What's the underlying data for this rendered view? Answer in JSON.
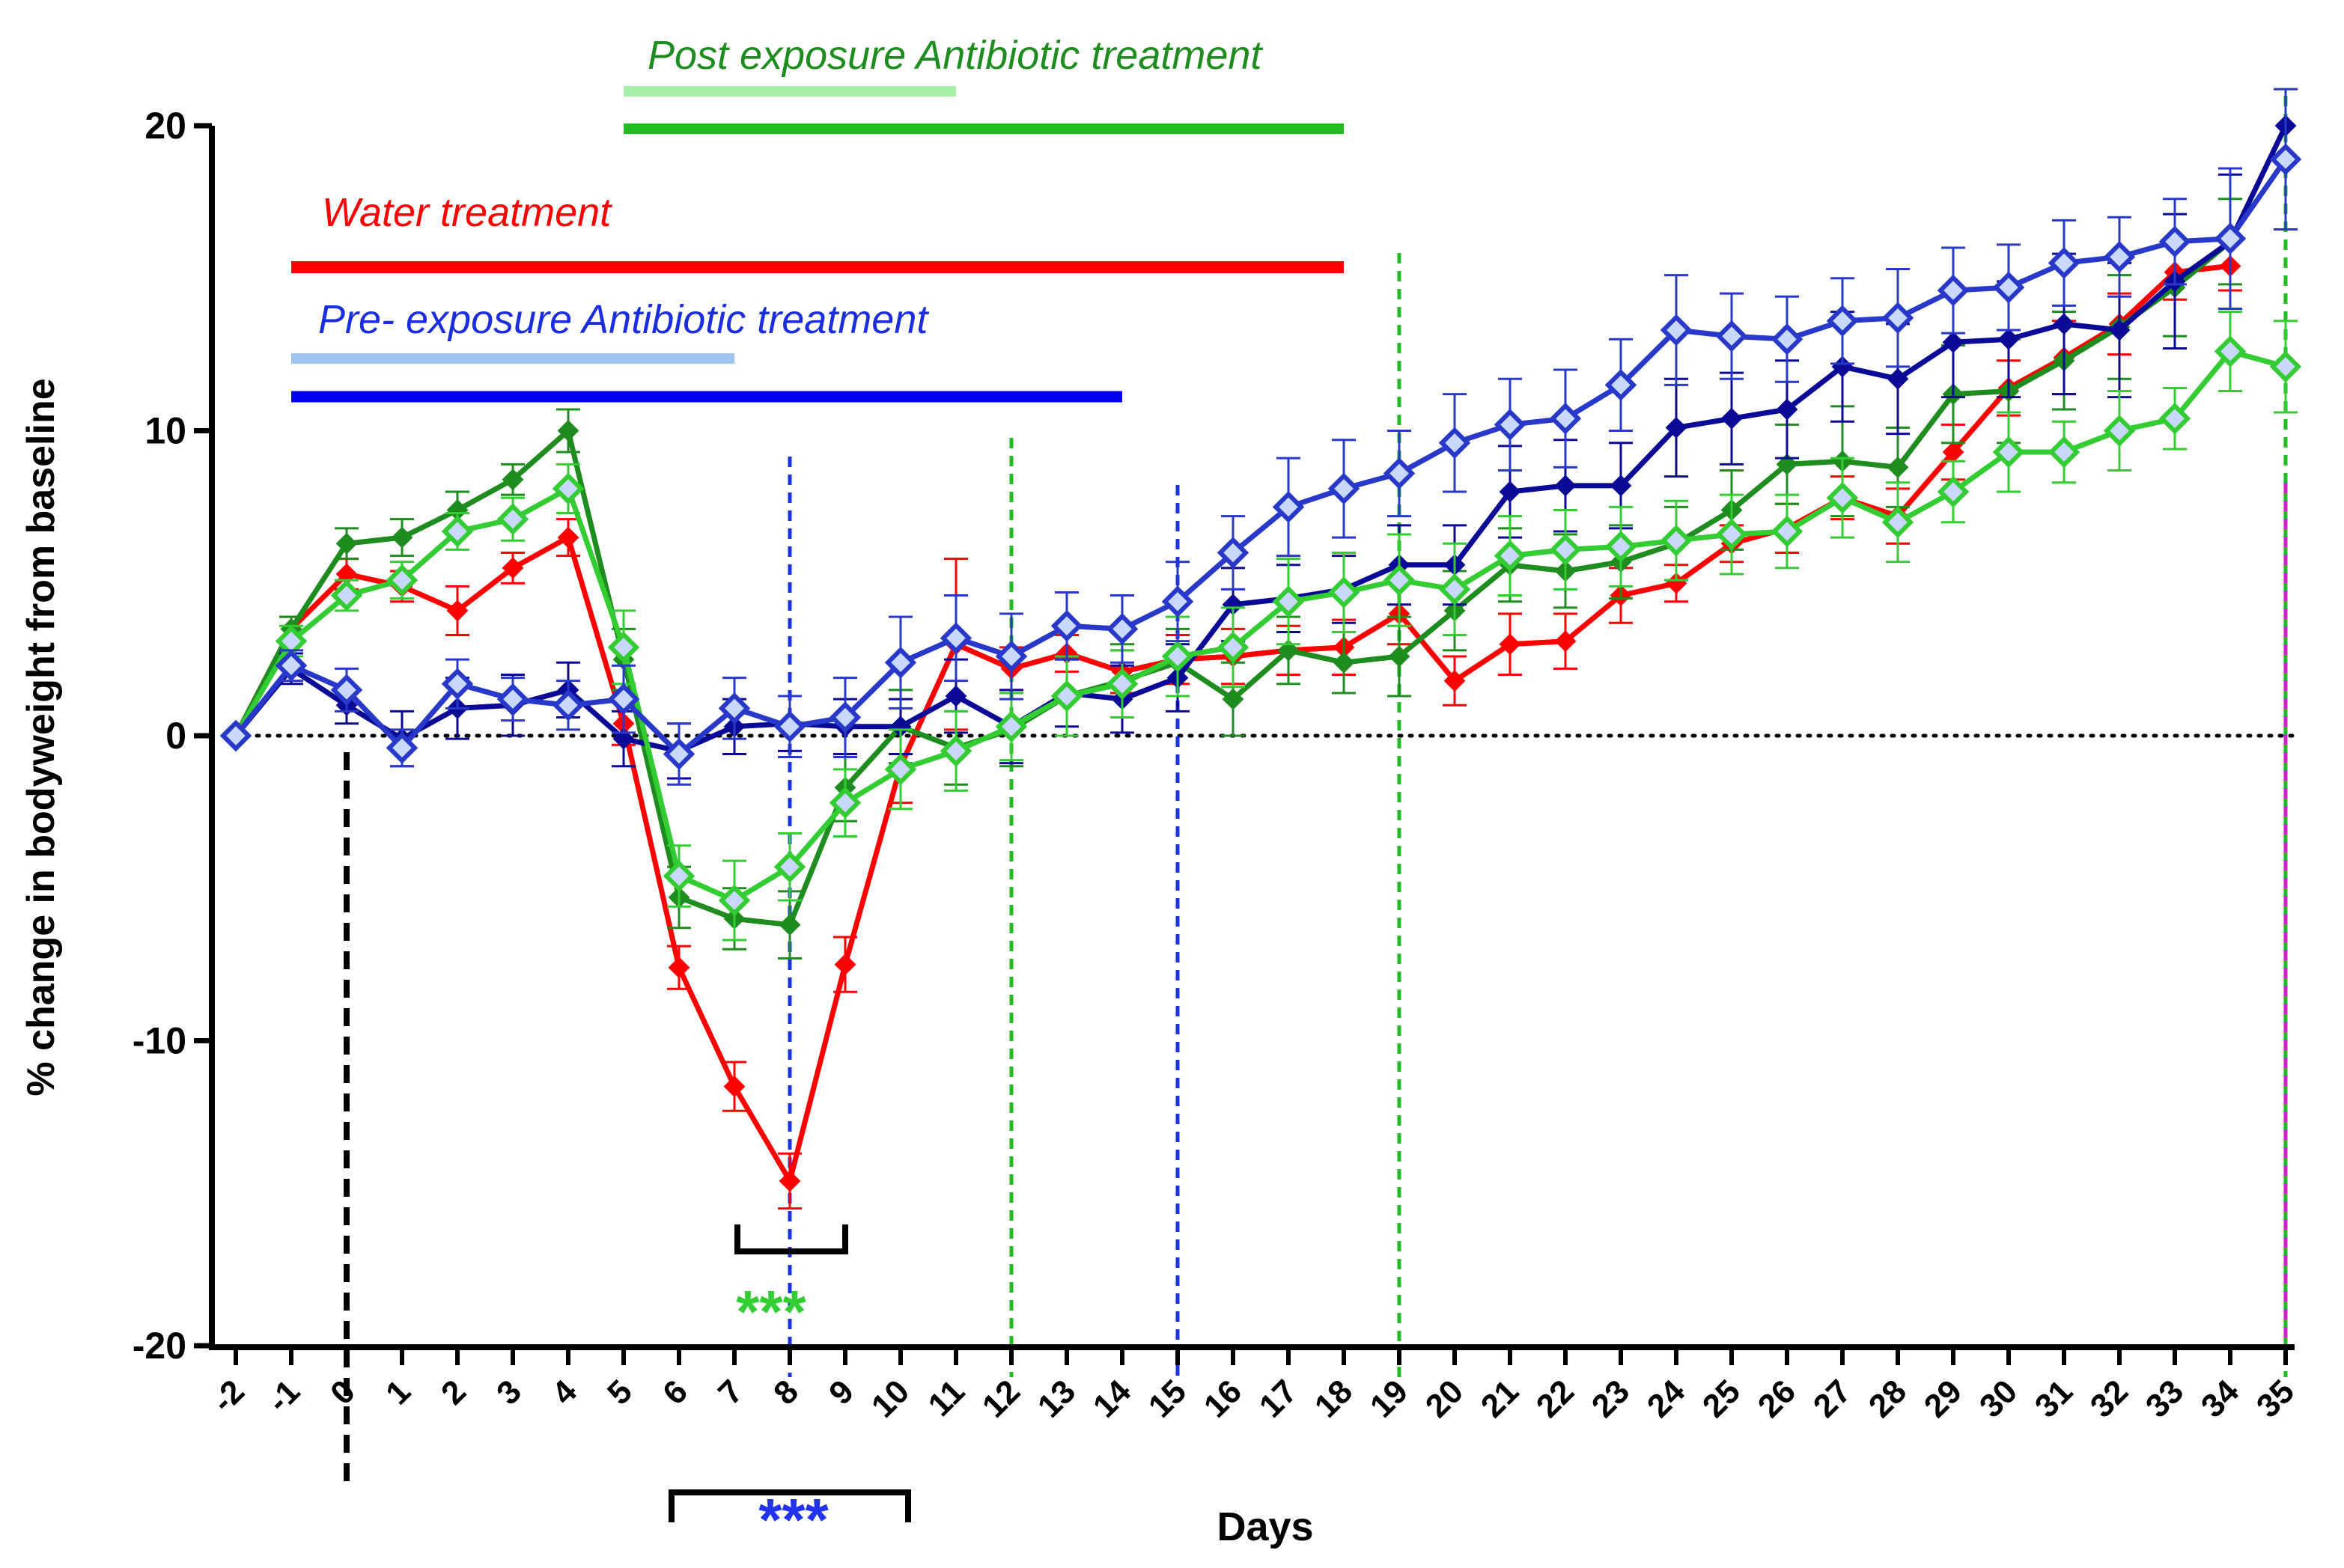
{
  "chart_data": {
    "type": "line",
    "xlabel": "Days",
    "ylabel": "% change in bodyweight from baseline",
    "ylim": [
      -20,
      20
    ],
    "yticks": [
      "-20",
      "-10",
      "0",
      "10",
      "20"
    ],
    "xlim": [
      -2,
      35
    ],
    "x": [
      -2,
      -1,
      0,
      1,
      2,
      3,
      4,
      5,
      6,
      7,
      8,
      9,
      10,
      11,
      12,
      13,
      14,
      15,
      16,
      17,
      18,
      19,
      20,
      21,
      22,
      23,
      24,
      25,
      26,
      27,
      28,
      29,
      30,
      31,
      32,
      33,
      34,
      35
    ],
    "x_tick_labels": [
      "-2",
      "-1",
      "0",
      "1",
      "2",
      "3",
      "4",
      "5",
      "6",
      "7",
      "8",
      "9",
      "10",
      "11",
      "12",
      "13",
      "14",
      "15",
      "16",
      "17",
      "18",
      "19",
      "20",
      "21",
      "22",
      "23",
      "24",
      "25",
      "26",
      "27",
      "28",
      "29",
      "30",
      "31",
      "32",
      "33",
      "34",
      "35"
    ],
    "colors": {
      "water": "#ff0000",
      "post_dark": "#1e8c1e",
      "post_light": "#33cc33",
      "pre_dark": "#0a0a96",
      "pre_light": "#2838c8",
      "baseline": "#000000",
      "infection_line": "#000000",
      "end_line": "#cc22cc"
    },
    "series": [
      {
        "name": "Water treatment",
        "color": "#ff0000",
        "marker": "filled-diamond",
        "values": [
          0,
          3.5,
          5.3,
          4.9,
          4.1,
          5.5,
          6.5,
          0.4,
          -7.6,
          -11.5,
          -14.6,
          -7.5,
          -1.0,
          3.0,
          2.2,
          2.7,
          2.1,
          2.5,
          2.6,
          2.8,
          2.9,
          4.0,
          1.8,
          3.0,
          3.1,
          4.6,
          5.0,
          6.3,
          6.8,
          7.8,
          7.2,
          9.3,
          11.4,
          12.4,
          13.5,
          15.2,
          15.4,
          null
        ],
        "errors": [
          0,
          0.4,
          0.5,
          0.5,
          0.8,
          0.5,
          0.6,
          0.7,
          0.7,
          0.8,
          0.9,
          0.9,
          1.2,
          2.8,
          0.7,
          0.6,
          0.7,
          0.8,
          0.9,
          0.8,
          0.9,
          1.0,
          0.8,
          1.0,
          0.9,
          0.9,
          0.6,
          0.6,
          0.8,
          0.7,
          0.9,
          0.9,
          0.9,
          1.2,
          1.0,
          0.9,
          0.8,
          0
        ]
      },
      {
        "name": "Post exposure Antibiotic treatment (course 1)",
        "color": "#1e8c1e",
        "marker": "filled-diamond",
        "values": [
          0,
          3.5,
          6.3,
          6.5,
          7.4,
          8.4,
          10.0,
          2.5,
          -5.3,
          -6.0,
          -6.2,
          -1.7,
          0.3,
          -0.4,
          0.2,
          1.3,
          1.8,
          2.4,
          1.2,
          2.8,
          2.4,
          2.6,
          4.1,
          5.6,
          5.4,
          5.7,
          6.3,
          7.4,
          8.9,
          9.0,
          8.8,
          11.2,
          11.3,
          12.3,
          13.4,
          14.7,
          16.2,
          null
        ],
        "errors": [
          0,
          0.4,
          0.5,
          0.6,
          0.6,
          0.5,
          0.7,
          1.0,
          1.0,
          1.0,
          1.1,
          1.1,
          1.2,
          1.2,
          1.2,
          1.3,
          1.2,
          1.1,
          1.2,
          1.1,
          1.0,
          1.3,
          1.3,
          1.2,
          1.2,
          1.2,
          1.2,
          1.3,
          1.3,
          1.8,
          1.3,
          1.6,
          1.7,
          1.6,
          1.7,
          1.6,
          1.4,
          0
        ]
      },
      {
        "name": "Post exposure Antibiotic treatment (course 2)",
        "color": "#33cc33",
        "marker": "open-diamond",
        "values": [
          0,
          3.1,
          4.6,
          5.1,
          6.7,
          7.1,
          8.1,
          2.9,
          -4.6,
          -5.4,
          -4.3,
          -2.2,
          -1.1,
          -0.5,
          0.3,
          1.3,
          1.7,
          2.6,
          2.9,
          4.4,
          4.7,
          5.1,
          4.8,
          5.9,
          6.1,
          6.2,
          6.4,
          6.6,
          6.7,
          7.8,
          7.0,
          8.0,
          9.3,
          9.3,
          10.0,
          10.4,
          12.6,
          12.1
        ],
        "errors": [
          0,
          0.5,
          0.5,
          0.6,
          0.6,
          0.7,
          0.8,
          1.2,
          1.0,
          1.3,
          1.1,
          1.1,
          1.3,
          1.3,
          1.1,
          1.3,
          1.1,
          1.3,
          1.3,
          1.4,
          1.3,
          1.5,
          1.5,
          1.3,
          1.3,
          1.3,
          1.3,
          1.3,
          1.2,
          1.3,
          1.3,
          1.0,
          1.3,
          1.0,
          1.3,
          1.0,
          1.3,
          1.5
        ]
      },
      {
        "name": "Pre- exposure Antibiotic treatment (course 1)",
        "color": "#0a0a96",
        "marker": "filled-diamond",
        "values": [
          0,
          2.2,
          1.0,
          -0.1,
          0.9,
          1.0,
          1.5,
          -0.1,
          -0.5,
          0.3,
          0.4,
          0.3,
          0.3,
          1.3,
          0.3,
          1.4,
          1.2,
          1.9,
          4.3,
          4.5,
          4.8,
          5.6,
          5.6,
          8.0,
          8.2,
          8.2,
          10.1,
          10.4,
          10.7,
          12.1,
          11.7,
          12.9,
          13.0,
          13.5,
          13.3,
          14.9,
          16.2,
          20.0
        ],
        "errors": [
          0,
          0.5,
          0.6,
          0.9,
          1.0,
          1.0,
          0.9,
          0.9,
          0.9,
          0.9,
          0.9,
          0.9,
          0.9,
          1.2,
          1.2,
          1.1,
          1.1,
          1.1,
          1.2,
          1.1,
          1.1,
          1.3,
          1.3,
          1.5,
          1.5,
          1.4,
          1.6,
          1.5,
          1.6,
          1.8,
          1.8,
          1.8,
          1.9,
          2.3,
          2.2,
          2.2,
          2.2,
          0
        ]
      },
      {
        "name": "Pre- exposure Antibiotic treatment (course 2)",
        "color": "#2838c8",
        "marker": "open-diamond",
        "values": [
          0,
          2.3,
          1.5,
          -0.4,
          1.7,
          1.2,
          1.0,
          1.2,
          -0.6,
          0.9,
          0.3,
          0.6,
          2.4,
          3.2,
          2.6,
          3.6,
          3.5,
          4.4,
          6.0,
          7.5,
          8.1,
          8.6,
          9.6,
          10.2,
          10.4,
          11.5,
          13.3,
          13.1,
          13.0,
          13.6,
          13.7,
          14.6,
          14.7,
          15.5,
          15.7,
          16.2,
          16.3,
          18.9
        ],
        "errors": [
          0,
          0.5,
          0.7,
          0.6,
          0.8,
          0.7,
          0.8,
          1.1,
          1.0,
          1.0,
          1.0,
          1.3,
          1.5,
          1.4,
          1.4,
          1.1,
          1.1,
          1.3,
          1.2,
          1.6,
          1.6,
          1.4,
          1.6,
          1.5,
          1.6,
          1.5,
          1.8,
          1.4,
          1.4,
          1.4,
          1.6,
          1.4,
          1.4,
          1.4,
          1.3,
          1.4,
          2.3,
          2.3
        ]
      }
    ],
    "annotations": {
      "post_label": "Post exposure Antibiotic treatment",
      "water_label": "Water treatment",
      "pre_label": "Pre- exposure Antibiotic treatment",
      "stars_green": "***",
      "stars_blue": "***"
    },
    "treatment_bars": [
      {
        "name": "post-light",
        "color": "#a6f0a6",
        "x_start": 5,
        "x_end": 11
      },
      {
        "name": "post-dark",
        "color": "#22bb22",
        "x_start": 5,
        "x_end": 18
      },
      {
        "name": "water",
        "color": "#ff0000",
        "x_start": -1,
        "x_end": 18
      },
      {
        "name": "pre-light",
        "color": "#a0c4f0",
        "x_start": -1,
        "x_end": 7
      },
      {
        "name": "pre-dark",
        "color": "#0000ee",
        "x_start": -1,
        "x_end": 14
      }
    ],
    "vertical_lines": [
      {
        "name": "infection-day",
        "x": 0,
        "color": "#000000"
      },
      {
        "name": "post-marker-8",
        "x": 8,
        "color": "#1a33e0"
      },
      {
        "name": "post-marker-12",
        "x": 12,
        "color": "#22bb22"
      },
      {
        "name": "pre-marker-15",
        "x": 15,
        "color": "#1a33e0"
      },
      {
        "name": "post-marker-19",
        "x": 19,
        "color": "#22bb22"
      },
      {
        "name": "end-marker-35",
        "x": 35,
        "color": "#22bb22"
      },
      {
        "name": "end-marker-35b",
        "x": 35,
        "color": "#cc22cc"
      }
    ],
    "brackets": [
      {
        "name": "green-bracket",
        "x_start": 7,
        "x_end": 9,
        "color": "#000000"
      },
      {
        "name": "blue-bracket",
        "x_start": 6,
        "x_end": 10,
        "color": "#000000"
      }
    ]
  }
}
